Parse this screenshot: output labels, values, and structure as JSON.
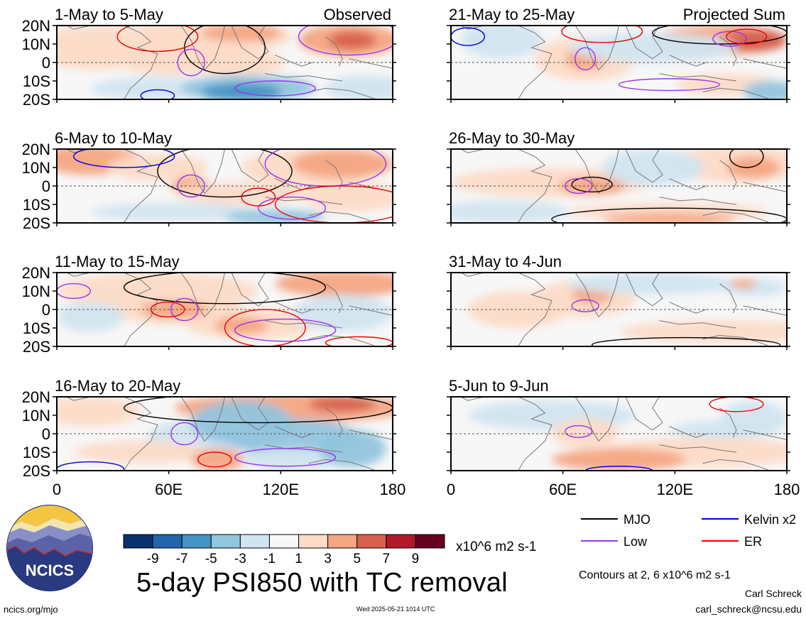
{
  "panels_left": [
    {
      "title": "1-May to 5-May",
      "corner_label": "Observed"
    },
    {
      "title": "6-May to 10-May",
      "corner_label": ""
    },
    {
      "title": "11-May to 15-May",
      "corner_label": ""
    },
    {
      "title": "16-May to 20-May",
      "corner_label": ""
    }
  ],
  "panels_right": [
    {
      "title": "21-May to 25-May",
      "corner_label": "Projected Sum"
    },
    {
      "title": "26-May to 30-May",
      "corner_label": ""
    },
    {
      "title": "31-May to 4-Jun",
      "corner_label": ""
    },
    {
      "title": "5-Jun to 9-Jun",
      "corner_label": ""
    }
  ],
  "lat_labels": [
    "20N",
    "10N",
    "0",
    "10S",
    "20S"
  ],
  "lon_labels": [
    "0",
    "60E",
    "120E",
    "180"
  ],
  "colorbar": {
    "ticks": [
      "-9",
      "-7",
      "-5",
      "-3",
      "-1",
      "1",
      "3",
      "5",
      "7",
      "9"
    ],
    "colors": [
      "#08306b",
      "#2166ac",
      "#4393c3",
      "#92c5de",
      "#d1e5f0",
      "#f7f7f7",
      "#fddbc7",
      "#f4a582",
      "#d6604d",
      "#b2182b",
      "#67001f"
    ],
    "units": "x10^6 m2 s-1"
  },
  "legend": [
    {
      "label": "MJO",
      "color": "#000000"
    },
    {
      "label": "Kelvin x2",
      "color": "#0000dd"
    },
    {
      "label": "Low",
      "color": "#9933ee"
    },
    {
      "label": "ER",
      "color": "#ee0000"
    }
  ],
  "title": "5-day PSI850 with TC removal",
  "contour_note": "Contours at 2, 6 x10^6 m2 s-1",
  "author": "Carl Schreck",
  "email": "carl_schreck@ncsu.edu",
  "website": "ncics.org/mjo",
  "timestamp": "Wed 2025-05-21 1014 UTC",
  "logo_text": "NCICS"
}
